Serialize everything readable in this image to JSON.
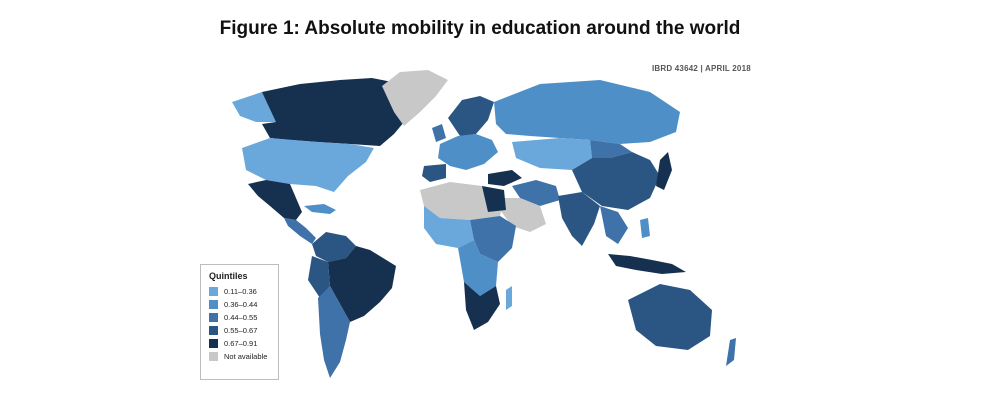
{
  "figure": {
    "title": "Figure 1: Absolute mobility in education around the world",
    "map_code": "IBRD 43642 | APRIL 2018"
  },
  "legend": {
    "title": "Quintiles",
    "items": [
      {
        "label": "0.11–0.36",
        "color": "#6aa8dc"
      },
      {
        "label": "0.36–0.44",
        "color": "#4f8fc8"
      },
      {
        "label": "0.44–0.55",
        "color": "#3e72a8"
      },
      {
        "label": "0.55–0.67",
        "color": "#2b5582"
      },
      {
        "label": "0.67–0.91",
        "color": "#16304f"
      },
      {
        "label": "Not available",
        "color": "#c8c8c8"
      }
    ]
  }
}
